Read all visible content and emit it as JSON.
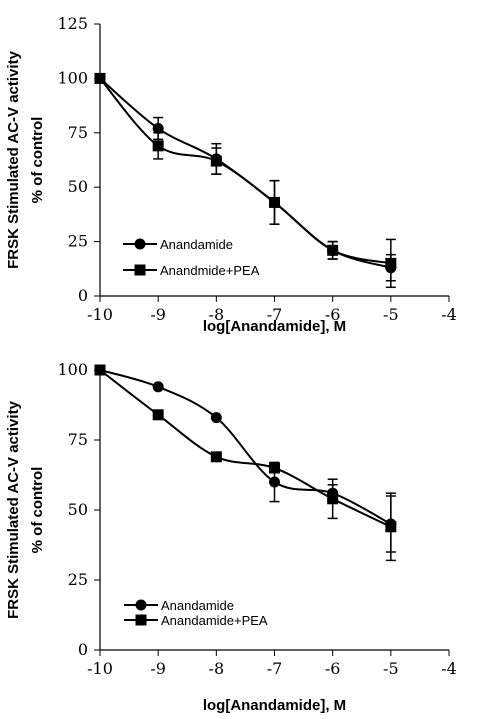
{
  "chart_data": [
    {
      "type": "line",
      "xlabel": "log[Anandamide], M",
      "ylabel": [
        "FRSK Stimulated AC-V activity",
        "% of control"
      ],
      "xlim": [
        -10,
        -4
      ],
      "ylim": [
        0,
        125
      ],
      "xticks": [
        -10,
        -9,
        -8,
        -7,
        -6,
        -5,
        -4
      ],
      "yticks": [
        0,
        25,
        50,
        75,
        100,
        125
      ],
      "legend_position": "bottom-left",
      "series": [
        {
          "name": "Anandamide",
          "marker": "circle",
          "x": [
            -10,
            -9,
            -8,
            -7,
            -6,
            -5
          ],
          "y": [
            100,
            77,
            63,
            43,
            21,
            13
          ],
          "error": [
            0,
            5,
            7,
            10,
            4,
            6
          ]
        },
        {
          "name": "Anandmide+PEA",
          "marker": "square",
          "x": [
            -10,
            -9,
            -8,
            -7,
            -6,
            -5
          ],
          "y": [
            100,
            69,
            62,
            43,
            21,
            15
          ],
          "error": [
            0,
            6,
            6,
            10,
            4,
            11
          ]
        }
      ]
    },
    {
      "type": "line",
      "xlabel": "log[Anandamide], M",
      "ylabel": [
        "FRSK Stimulated AC-V activity",
        "% of control"
      ],
      "xlim": [
        -10,
        -4
      ],
      "ylim": [
        0,
        100
      ],
      "xticks": [
        -10,
        -9,
        -8,
        -7,
        -6,
        -5,
        -4
      ],
      "yticks": [
        0,
        25,
        50,
        75,
        100
      ],
      "legend_position": "bottom-left",
      "series": [
        {
          "name": "Anandamide",
          "marker": "circle",
          "x": [
            -10,
            -9,
            -8,
            -7,
            -6,
            -5
          ],
          "y": [
            100,
            94,
            83,
            60,
            56,
            45
          ],
          "error": [
            0,
            0,
            0,
            7,
            3,
            10
          ]
        },
        {
          "name": "Anandamide+PEA",
          "marker": "square",
          "x": [
            -10,
            -9,
            -8,
            -7,
            -6,
            -5
          ],
          "y": [
            100,
            84,
            69,
            65,
            54,
            44
          ],
          "error": [
            0,
            0,
            0,
            0,
            7,
            12
          ]
        }
      ]
    }
  ]
}
